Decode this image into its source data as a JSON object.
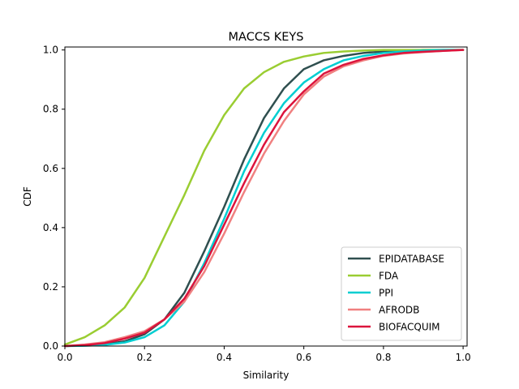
{
  "chart_data": {
    "type": "line",
    "title": "MACCS KEYS",
    "xlabel": "Similarity",
    "ylabel": "CDF",
    "xlim": [
      0.0,
      1.01
    ],
    "ylim": [
      0.0,
      1.01
    ],
    "xticks": [
      0.0,
      0.2,
      0.4,
      0.6,
      0.8,
      1.0
    ],
    "xtick_labels": [
      "0.0",
      "0.2",
      "0.4",
      "0.6",
      "0.8",
      "1.0"
    ],
    "yticks": [
      0.0,
      0.2,
      0.4,
      0.6,
      0.8,
      1.0
    ],
    "ytick_labels": [
      "0.0",
      "0.2",
      "0.4",
      "0.6",
      "0.8",
      "1.0"
    ],
    "grid": false,
    "legend_position": "bottom-right",
    "series": [
      {
        "name": "EPIDATABASE",
        "color": "#2f4f4f",
        "x": [
          0.0,
          0.05,
          0.1,
          0.15,
          0.2,
          0.25,
          0.3,
          0.35,
          0.4,
          0.45,
          0.5,
          0.55,
          0.6,
          0.65,
          0.7,
          0.75,
          0.8,
          0.85,
          0.9,
          0.95,
          1.0
        ],
        "y": [
          0.0,
          0.002,
          0.006,
          0.016,
          0.04,
          0.09,
          0.18,
          0.32,
          0.47,
          0.63,
          0.77,
          0.87,
          0.935,
          0.965,
          0.98,
          0.99,
          0.995,
          0.998,
          1.0,
          1.0,
          1.0
        ]
      },
      {
        "name": "FDA",
        "color": "#9acd32",
        "x": [
          0.0,
          0.05,
          0.1,
          0.15,
          0.2,
          0.25,
          0.3,
          0.35,
          0.4,
          0.45,
          0.5,
          0.55,
          0.6,
          0.65,
          0.7,
          0.75,
          0.8,
          0.85,
          0.9,
          0.95,
          1.0
        ],
        "y": [
          0.005,
          0.03,
          0.07,
          0.13,
          0.23,
          0.37,
          0.51,
          0.66,
          0.78,
          0.87,
          0.925,
          0.96,
          0.978,
          0.99,
          0.995,
          0.998,
          1.0,
          1.0,
          1.0,
          1.0,
          1.0
        ]
      },
      {
        "name": "PPI",
        "color": "#00ced1",
        "x": [
          0.0,
          0.05,
          0.1,
          0.15,
          0.2,
          0.25,
          0.3,
          0.35,
          0.4,
          0.45,
          0.5,
          0.55,
          0.6,
          0.65,
          0.7,
          0.75,
          0.8,
          0.85,
          0.9,
          0.95,
          1.0
        ],
        "y": [
          0.0,
          0.001,
          0.004,
          0.012,
          0.03,
          0.07,
          0.15,
          0.28,
          0.43,
          0.59,
          0.72,
          0.82,
          0.89,
          0.935,
          0.965,
          0.98,
          0.99,
          0.995,
          0.998,
          1.0,
          1.0
        ]
      },
      {
        "name": "AFRODB",
        "color": "#f08080",
        "x": [
          0.0,
          0.05,
          0.1,
          0.15,
          0.2,
          0.25,
          0.3,
          0.35,
          0.4,
          0.45,
          0.5,
          0.55,
          0.6,
          0.65,
          0.7,
          0.75,
          0.8,
          0.85,
          0.9,
          0.95,
          1.0
        ],
        "y": [
          0.0,
          0.005,
          0.013,
          0.03,
          0.05,
          0.09,
          0.15,
          0.25,
          0.38,
          0.52,
          0.65,
          0.76,
          0.85,
          0.91,
          0.945,
          0.965,
          0.98,
          0.988,
          0.993,
          0.997,
          1.0
        ]
      },
      {
        "name": "BIOFACQUIM",
        "color": "#dc143c",
        "x": [
          0.0,
          0.05,
          0.1,
          0.15,
          0.2,
          0.25,
          0.3,
          0.35,
          0.4,
          0.45,
          0.5,
          0.55,
          0.6,
          0.65,
          0.7,
          0.75,
          0.8,
          0.85,
          0.9,
          0.95,
          1.0
        ],
        "y": [
          0.0,
          0.003,
          0.01,
          0.025,
          0.045,
          0.09,
          0.16,
          0.27,
          0.41,
          0.55,
          0.68,
          0.79,
          0.86,
          0.92,
          0.95,
          0.97,
          0.982,
          0.99,
          0.994,
          0.997,
          1.0
        ]
      }
    ]
  }
}
